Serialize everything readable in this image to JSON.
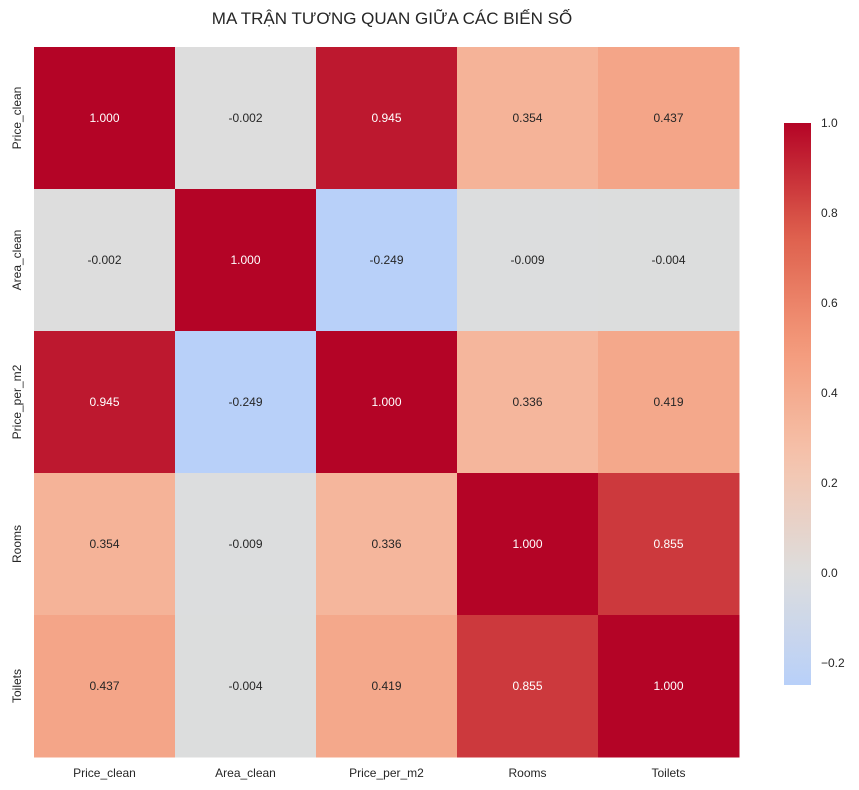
{
  "chart_data": {
    "type": "heatmap",
    "title": "MA TRẬN TƯƠNG QUAN GIỮA CÁC BIẾN SỐ",
    "x_labels": [
      "Price_clean",
      "Area_clean",
      "Price_per_m2",
      "Rooms",
      "Toilets"
    ],
    "y_labels": [
      "Price_clean",
      "Area_clean",
      "Price_per_m2",
      "Rooms",
      "Toilets"
    ],
    "values": [
      [
        1.0,
        -0.002,
        0.945,
        0.354,
        0.437
      ],
      [
        -0.002,
        1.0,
        -0.249,
        -0.009,
        -0.004
      ],
      [
        0.945,
        -0.249,
        1.0,
        0.336,
        0.419
      ],
      [
        0.354,
        -0.009,
        0.336,
        1.0,
        0.855
      ],
      [
        0.437,
        -0.004,
        0.419,
        0.855,
        1.0
      ]
    ],
    "value_labels": [
      [
        "1.000",
        "-0.002",
        "0.945",
        "0.354",
        "0.437"
      ],
      [
        "-0.002",
        "1.000",
        "-0.249",
        "-0.009",
        "-0.004"
      ],
      [
        "0.945",
        "-0.249",
        "1.000",
        "0.336",
        "0.419"
      ],
      [
        "0.354",
        "-0.009",
        "0.336",
        "1.000",
        "0.855"
      ],
      [
        "0.437",
        "-0.004",
        "0.419",
        "0.855",
        "1.000"
      ]
    ],
    "colormap": "coolwarm",
    "colorbar": {
      "range": [
        -0.249,
        1.0
      ],
      "ticks": [
        -0.2,
        0.0,
        0.2,
        0.4,
        0.6,
        0.8,
        1.0
      ],
      "tick_labels": [
        "−0.2",
        "0.0",
        "0.2",
        "0.4",
        "0.6",
        "0.8",
        "1.0"
      ]
    },
    "grid": false,
    "legend": "colorbar-right"
  }
}
